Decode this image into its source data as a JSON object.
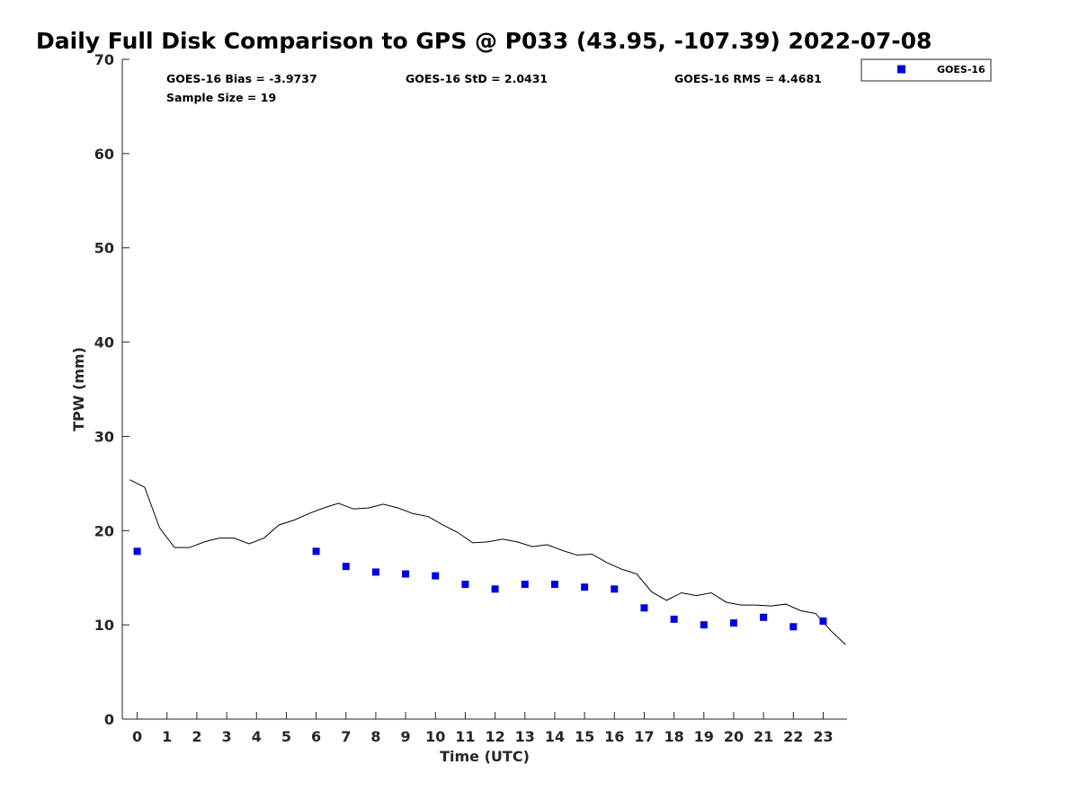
{
  "chart_data": {
    "type": "scatter",
    "title": "Daily Full Disk Comparison to GPS @ P033 (43.95, -107.39) 2022-07-08",
    "xlabel": "Time (UTC)",
    "ylabel": "TPW (mm)",
    "xlim": [
      -0.5,
      23.8
    ],
    "ylim": [
      0,
      70
    ],
    "x_ticks": [
      0,
      1,
      2,
      3,
      4,
      5,
      6,
      7,
      8,
      9,
      10,
      11,
      12,
      13,
      14,
      15,
      16,
      17,
      18,
      19,
      20,
      21,
      22,
      23
    ],
    "y_ticks": [
      0,
      10,
      20,
      30,
      40,
      50,
      60,
      70
    ],
    "grid": false,
    "legend_position": "top-right",
    "stats": {
      "bias": "GOES-16 Bias = -3.9737",
      "std": "GOES-16 StD = 2.0431",
      "rms": "GOES-16 RMS = 4.4681",
      "sample": "Sample Size = 19"
    },
    "series": [
      {
        "name": "GOES-16",
        "kind": "scatter",
        "color": "#0000dd",
        "marker": "square",
        "x": [
          0,
          6,
          7,
          8,
          9,
          10,
          11,
          12,
          13,
          14,
          15,
          16,
          17,
          18,
          19,
          20,
          21,
          22,
          23
        ],
        "y": [
          17.8,
          17.8,
          16.2,
          15.6,
          15.4,
          15.2,
          14.3,
          13.8,
          14.3,
          14.3,
          14.0,
          13.8,
          11.8,
          10.6,
          10.0,
          10.2,
          10.8,
          9.8,
          10.4
        ]
      },
      {
        "kind": "line",
        "color": "#000000",
        "x": [
          -0.25,
          0.25,
          0.75,
          1.25,
          1.75,
          2.25,
          2.75,
          3.25,
          3.75,
          4.25,
          4.75,
          5.25,
          5.75,
          6.25,
          6.75,
          7.25,
          7.75,
          8.25,
          8.75,
          9.25,
          9.75,
          10.25,
          10.75,
          11.25,
          11.75,
          12.25,
          12.75,
          13.25,
          13.75,
          14.25,
          14.75,
          15.25,
          15.75,
          16.25,
          16.75,
          17.25,
          17.75,
          18.25,
          18.75,
          19.25,
          19.75,
          20.25,
          20.75,
          21.25,
          21.75,
          22.25,
          22.75,
          23.25,
          23.75
        ],
        "y": [
          25.4,
          24.6,
          20.3,
          18.2,
          18.2,
          18.8,
          19.2,
          19.2,
          18.6,
          19.2,
          20.6,
          21.1,
          21.8,
          22.4,
          22.9,
          22.3,
          22.4,
          22.8,
          22.4,
          21.8,
          21.5,
          20.6,
          19.8,
          18.7,
          18.8,
          19.1,
          18.8,
          18.3,
          18.5,
          17.9,
          17.4,
          17.5,
          16.6,
          15.9,
          15.4,
          13.5,
          12.6,
          13.4,
          13.1,
          13.4,
          12.4,
          12.1,
          12.1,
          12.0,
          12.2,
          11.5,
          11.2,
          9.4,
          7.9
        ]
      }
    ]
  }
}
